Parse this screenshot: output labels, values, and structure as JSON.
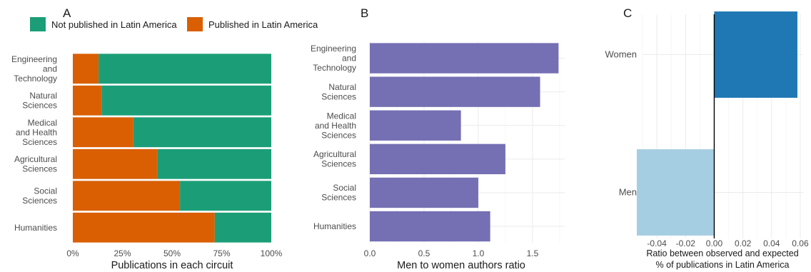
{
  "chart_data": [
    {
      "panel": "A",
      "type": "bar",
      "stacked": true,
      "orientation": "horizontal",
      "categories": [
        "Engineering and Technology",
        "Natural Sciences",
        "Medical and Health Sciences",
        "Agricultural Sciences",
        "Social Sciences",
        "Humanities"
      ],
      "category_lines": [
        [
          "Engineering",
          "and",
          "Technology"
        ],
        [
          "Natural",
          "Sciences"
        ],
        [
          "Medical",
          "and Health",
          "Sciences"
        ],
        [
          "Agricultural",
          "Sciences"
        ],
        [
          "Social",
          "Sciences"
        ],
        [
          "Humanities"
        ]
      ],
      "series": [
        {
          "name": "Published in Latin America",
          "color": "#d95f02",
          "values": [
            0.13,
            0.145,
            0.305,
            0.425,
            0.54,
            0.715
          ]
        },
        {
          "name": "Not published in Latin America",
          "color": "#1b9e77",
          "values": [
            0.87,
            0.855,
            0.695,
            0.575,
            0.46,
            0.285
          ]
        }
      ],
      "legend_order": [
        "Not published in Latin America",
        "Published in Latin America"
      ],
      "legend_position": "top",
      "xlabel": "Publications in each circuit",
      "xticks": [
        0,
        0.25,
        0.5,
        0.75,
        1
      ],
      "xtick_labels": [
        "0%",
        "25%",
        "50%",
        "75%",
        "100%"
      ],
      "xlim": [
        0,
        1
      ]
    },
    {
      "panel": "B",
      "type": "bar",
      "orientation": "horizontal",
      "categories": [
        "Engineering and Technology",
        "Natural Sciences",
        "Medical and Health Sciences",
        "Agricultural Sciences",
        "Social Sciences",
        "Humanities"
      ],
      "category_lines": [
        [
          "Engineering",
          "and",
          "Technology"
        ],
        [
          "Natural",
          "Sciences"
        ],
        [
          "Medical",
          "and Health",
          "Sciences"
        ],
        [
          "Agricultural",
          "Sciences"
        ],
        [
          "Social",
          "Sciences"
        ],
        [
          "Humanities"
        ]
      ],
      "values": [
        1.74,
        1.57,
        0.84,
        1.25,
        1.0,
        1.11
      ],
      "color": "#7570b3",
      "xlabel": "Men to women authors ratio",
      "xticks": [
        0,
        0.5,
        1,
        1.5
      ],
      "xtick_labels": [
        "0.0",
        "0.5",
        "1.0",
        "1.5"
      ],
      "xlim": [
        0,
        1.8
      ]
    },
    {
      "panel": "C",
      "type": "bar",
      "orientation": "horizontal",
      "categories": [
        "Women",
        "Men"
      ],
      "values": [
        0.058,
        -0.054
      ],
      "colors": [
        "#1f78b4",
        "#a6cee3"
      ],
      "xlabel_lines": [
        "Ratio between observed and expected",
        "% of publications in Latin America"
      ],
      "xticks": [
        -0.04,
        -0.02,
        0,
        0.02,
        0.04,
        0.06
      ],
      "xtick_labels": [
        "-0.04",
        "-0.02",
        "0.00",
        "0.02",
        "0.04",
        "0.06"
      ],
      "xlim": [
        -0.05,
        0.062
      ]
    }
  ],
  "panel_labels": [
    "A",
    "B",
    "C"
  ]
}
